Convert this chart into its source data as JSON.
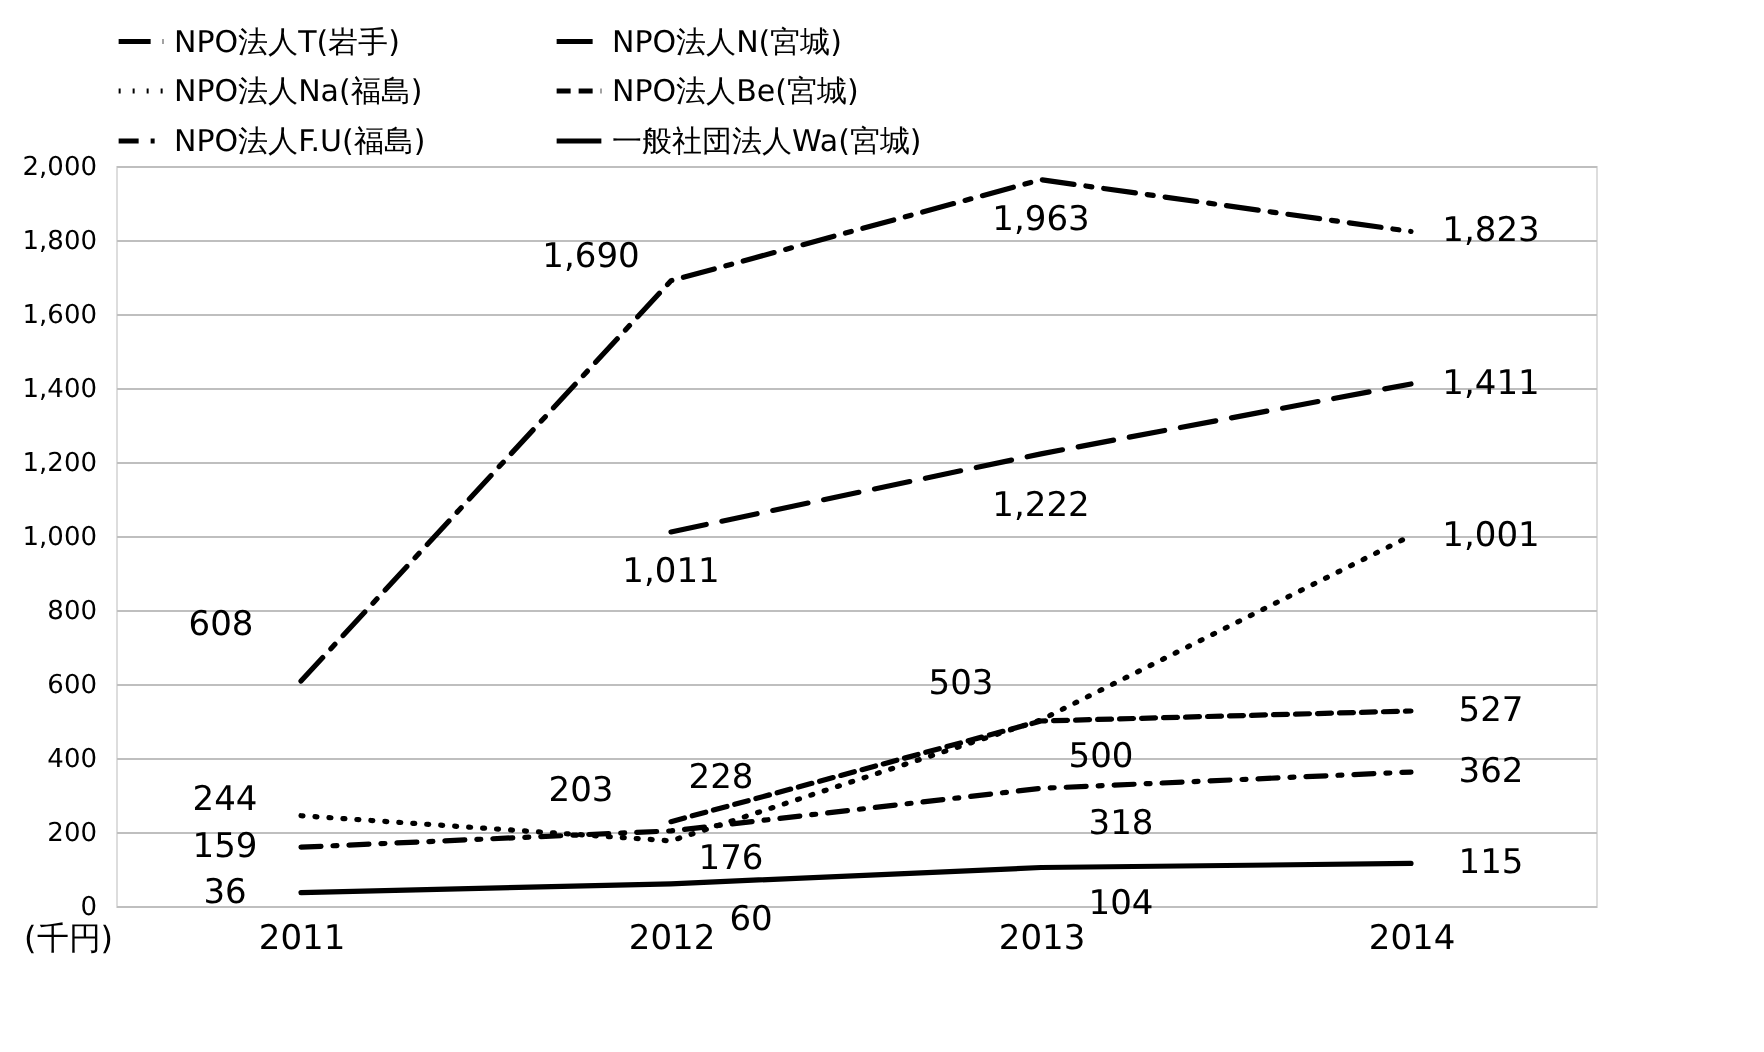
{
  "chart_data": {
    "type": "line",
    "ylabel": "(千円)",
    "categories": [
      "2011",
      "2012",
      "2013",
      "2014"
    ],
    "ylim": [
      0,
      2000
    ],
    "yticks": [
      {
        "value": 0,
        "label": "0"
      },
      {
        "value": 200,
        "label": "200"
      },
      {
        "value": 400,
        "label": "400"
      },
      {
        "value": 600,
        "label": "600"
      },
      {
        "value": 800,
        "label": "800"
      },
      {
        "value": 1000,
        "label": "1,000"
      },
      {
        "value": 1200,
        "label": "1,200"
      },
      {
        "value": 1400,
        "label": "1,400"
      },
      {
        "value": 1600,
        "label": "1,600"
      },
      {
        "value": 1800,
        "label": "1,800"
      },
      {
        "value": 2000,
        "label": "2,000"
      }
    ],
    "grid": "y",
    "legend": "top",
    "marker": "none",
    "series": [
      {
        "name": "NPO法人T(岩手)",
        "color": "#000000",
        "line_style": "longdashdot",
        "values": [
          608,
          1690,
          1963,
          1823
        ],
        "value_labels": [
          "608",
          "1,690",
          "1,963",
          "1,823"
        ]
      },
      {
        "name": "NPO法人N(宮城)",
        "color": "#000000",
        "line_style": "longdash",
        "values": [
          null,
          1011,
          1222,
          1411
        ],
        "value_labels": [
          null,
          "1,011",
          "1,222",
          "1,411"
        ]
      },
      {
        "name": "NPO法人Na(福島)",
        "color": "#000000",
        "line_style": "dotted",
        "values": [
          244,
          176,
          503,
          1001
        ],
        "value_labels": [
          "244",
          "176",
          "503",
          "1,001"
        ]
      },
      {
        "name": "NPO法人Be(宮城)",
        "color": "#000000",
        "line_style": "dashed",
        "values": [
          null,
          228,
          500,
          527
        ],
        "value_labels": [
          null,
          "228",
          "500",
          "527"
        ]
      },
      {
        "name": "NPO法人F.U(福島)",
        "color": "#000000",
        "line_style": "dashdot",
        "values": [
          159,
          203,
          318,
          362
        ],
        "value_labels": [
          "159",
          "203",
          "318",
          "362"
        ]
      },
      {
        "name": "一般社団法人Wa(宮城)",
        "color": "#000000",
        "line_style": "solid",
        "values": [
          36,
          60,
          104,
          115
        ],
        "value_labels": [
          "36",
          "60",
          "104",
          "115"
        ]
      }
    ]
  }
}
